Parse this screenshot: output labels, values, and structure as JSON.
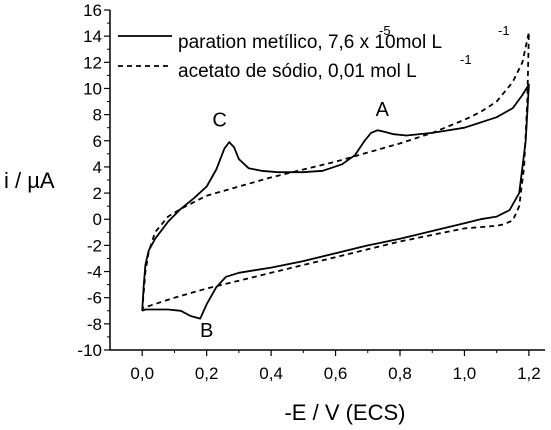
{
  "chart_data": {
    "type": "line",
    "title": "",
    "xlabel": "-E / V (ECS)",
    "ylabel": "i / µA",
    "xlim": [
      -0.1,
      1.25
    ],
    "ylim": [
      -10,
      16
    ],
    "x_ticks": [
      0.0,
      0.2,
      0.4,
      0.6,
      0.8,
      1.0,
      1.2
    ],
    "x_tick_labels": [
      "0,0",
      "0,2",
      "0,4",
      "0,6",
      "0,8",
      "1,0",
      "1,2"
    ],
    "y_ticks": [
      -10,
      -8,
      -6,
      -4,
      -2,
      0,
      2,
      4,
      6,
      8,
      10,
      12,
      14,
      16
    ],
    "y_tick_labels": [
      "-10",
      "-8",
      "-6",
      "-4",
      "-2",
      "0",
      "2",
      "4",
      "6",
      "8",
      "10",
      "12",
      "14",
      "16"
    ],
    "legend_position": "top-left",
    "grid": false,
    "series": [
      {
        "name": "paration metílico, 7,6 x 10⁻⁵mol L⁻¹",
        "style": "solid",
        "color": "#000000",
        "x": [
          0.0,
          0.005,
          0.01,
          0.02,
          0.04,
          0.08,
          0.12,
          0.16,
          0.2,
          0.23,
          0.255,
          0.27,
          0.285,
          0.3,
          0.33,
          0.37,
          0.42,
          0.5,
          0.56,
          0.62,
          0.66,
          0.69,
          0.71,
          0.73,
          0.75,
          0.78,
          0.82,
          0.9,
          1.0,
          1.1,
          1.15,
          1.18,
          1.2,
          1.19,
          1.17,
          1.14,
          1.1,
          1.05,
          1.0,
          0.9,
          0.8,
          0.7,
          0.6,
          0.5,
          0.4,
          0.35,
          0.3,
          0.26,
          0.23,
          0.2,
          0.18,
          0.15,
          0.12,
          0.08,
          0.04,
          0.01,
          0.0
        ],
        "y": [
          -7.0,
          -5.0,
          -3.5,
          -2.4,
          -1.5,
          -0.2,
          0.8,
          1.6,
          2.5,
          3.8,
          5.4,
          5.9,
          5.5,
          4.6,
          3.9,
          3.7,
          3.6,
          3.6,
          3.7,
          4.2,
          4.9,
          6.0,
          6.6,
          6.8,
          6.7,
          6.5,
          6.4,
          6.6,
          7.0,
          7.8,
          8.5,
          9.5,
          10.3,
          6.0,
          2.0,
          0.7,
          0.2,
          0.0,
          -0.3,
          -0.9,
          -1.5,
          -2.0,
          -2.6,
          -3.2,
          -3.7,
          -3.9,
          -4.1,
          -4.4,
          -5.2,
          -6.5,
          -7.6,
          -7.4,
          -7.0,
          -6.9,
          -6.9,
          -6.9,
          -7.0
        ]
      },
      {
        "name": "acetato de sódio, 0,01 mol L⁻¹",
        "style": "dashed",
        "color": "#000000",
        "x": [
          0.0,
          0.005,
          0.01,
          0.02,
          0.04,
          0.08,
          0.12,
          0.16,
          0.2,
          0.3,
          0.4,
          0.5,
          0.6,
          0.7,
          0.8,
          0.9,
          1.0,
          1.05,
          1.1,
          1.15,
          1.18,
          1.2,
          1.195,
          1.185,
          1.17,
          1.15,
          1.12,
          1.1,
          1.05,
          1.0,
          0.9,
          0.8,
          0.7,
          0.6,
          0.5,
          0.4,
          0.3,
          0.2,
          0.1,
          0.0
        ],
        "y": [
          -7.0,
          -5.5,
          -4.0,
          -2.5,
          -1.0,
          0.2,
          0.8,
          1.3,
          1.8,
          2.5,
          3.2,
          3.8,
          4.4,
          5.1,
          5.8,
          6.6,
          7.6,
          8.2,
          9.0,
          10.5,
          12.0,
          14.3,
          9.0,
          4.0,
          1.0,
          -0.1,
          -0.4,
          -0.5,
          -0.6,
          -0.7,
          -1.2,
          -1.7,
          -2.3,
          -2.9,
          -3.5,
          -4.1,
          -4.7,
          -5.3,
          -6.0,
          -6.8
        ]
      }
    ],
    "annotations": [
      {
        "text": "A",
        "x": 0.745,
        "y": 7.9
      },
      {
        "text": "B",
        "x": 0.2,
        "y": -9.0
      },
      {
        "text": "C",
        "x": 0.24,
        "y": 7.1
      }
    ],
    "legend": {
      "solid_text": "paration metílico, 7,6 x 10mol L",
      "solid_sup_minus5": "-5",
      "solid_sup_minus1": "-1",
      "dashed_text": "acetato de sódio, 0,01 mol L",
      "dashed_sup_minus1": "-1"
    }
  }
}
